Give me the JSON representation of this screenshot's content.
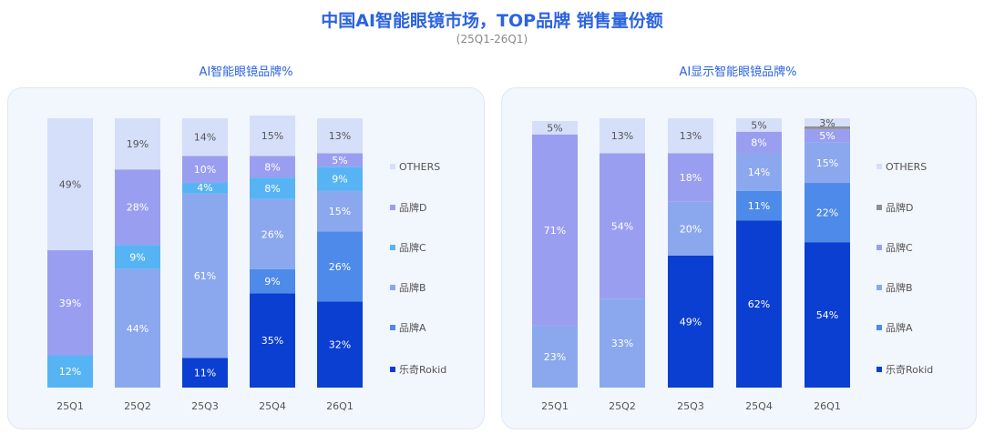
{
  "title": "中国AI智能眼镜市场，TOP品牌 销售量份额",
  "subtitle": "(25Q1-26Q1)",
  "colors": {
    "OTHERS": "#d5dff9",
    "品牌D_left": "#9a9ef0",
    "品牌C_left": "#57b4f4",
    "品牌B": "#8ba8ee",
    "品牌A": "#4d8ae9",
    "乐奇Rokid": "#0b3fd1",
    "品牌D_right": "#8f8f8f",
    "品牌C_right": "#9a9ef0"
  },
  "chart_data": [
    {
      "type": "bar",
      "stacked": true,
      "title": "AI智能眼镜品牌%",
      "categories": [
        "25Q1",
        "25Q2",
        "25Q3",
        "25Q4",
        "26Q1"
      ],
      "series": [
        {
          "name": "乐奇Rokid",
          "values": [
            0,
            0,
            11,
            35,
            32
          ],
          "labels": [
            "",
            "",
            "11%",
            "35%",
            "32%"
          ]
        },
        {
          "name": "品牌A",
          "values": [
            0,
            0,
            0,
            9,
            26
          ],
          "labels": [
            "",
            "",
            "",
            "9%",
            "26%"
          ]
        },
        {
          "name": "品牌B",
          "values": [
            0,
            44,
            61,
            26,
            15
          ],
          "labels": [
            "",
            "44%",
            "61%",
            "26%",
            "15%"
          ]
        },
        {
          "name": "品牌C",
          "values": [
            12,
            9,
            4,
            8,
            9
          ],
          "labels": [
            "12%",
            "9%",
            "4%",
            "8%",
            "9%"
          ]
        },
        {
          "name": "品牌D",
          "values": [
            39,
            28,
            10,
            8,
            5
          ],
          "labels": [
            "39%",
            "28%",
            "10%",
            "8%",
            "5%"
          ]
        },
        {
          "name": "OTHERS",
          "values": [
            49,
            19,
            14,
            15,
            13
          ],
          "labels": [
            "49%",
            "19%",
            "14%",
            "15%",
            "13%"
          ]
        }
      ],
      "legend": [
        "OTHERS",
        "品牌D",
        "品牌C",
        "品牌B",
        "品牌A",
        "乐奇Rokid"
      ],
      "ylim": [
        0,
        100
      ],
      "legend_position": "right"
    },
    {
      "type": "bar",
      "stacked": true,
      "title": "AI显示智能眼镜品牌%",
      "categories": [
        "25Q1",
        "25Q2",
        "25Q3",
        "25Q4",
        "26Q1"
      ],
      "series": [
        {
          "name": "乐奇Rokid",
          "values": [
            0,
            0,
            49,
            62,
            54
          ],
          "labels": [
            "",
            "",
            "49%",
            "62%",
            "54%"
          ]
        },
        {
          "name": "品牌A",
          "values": [
            0,
            0,
            0,
            11,
            22
          ],
          "labels": [
            "",
            "",
            "",
            "11%",
            "22%"
          ]
        },
        {
          "name": "品牌B",
          "values": [
            23,
            33,
            20,
            14,
            15
          ],
          "labels": [
            "23%",
            "33%",
            "20%",
            "14%",
            "15%"
          ]
        },
        {
          "name": "品牌C",
          "values": [
            71,
            54,
            18,
            8,
            5
          ],
          "labels": [
            "71%",
            "54%",
            "18%",
            "8%",
            "5%"
          ]
        },
        {
          "name": "品牌D",
          "values": [
            0,
            0,
            0,
            0,
            1
          ],
          "labels": [
            "",
            "",
            "",
            "",
            ""
          ]
        },
        {
          "name": "OTHERS",
          "values": [
            5,
            13,
            13,
            5,
            3
          ],
          "labels": [
            "5%",
            "13%",
            "13%",
            "5%",
            "3%"
          ]
        }
      ],
      "legend": [
        "OTHERS",
        "品牌D",
        "品牌C",
        "品牌B",
        "品牌A",
        "乐奇Rokid"
      ],
      "ylim": [
        0,
        100
      ],
      "legend_position": "right"
    }
  ]
}
